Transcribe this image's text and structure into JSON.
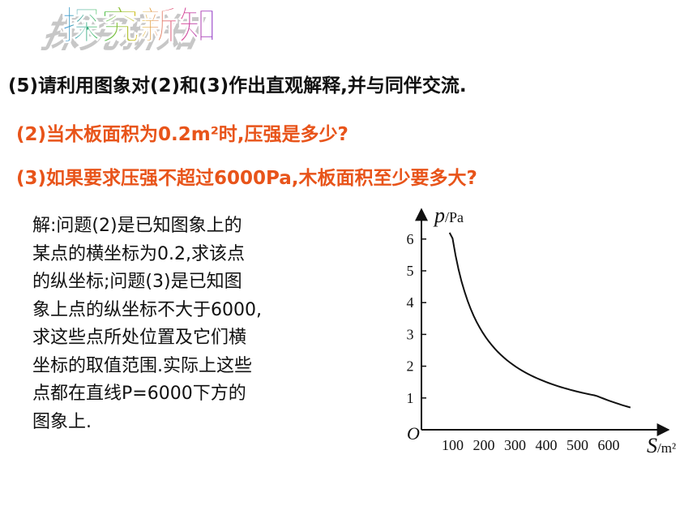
{
  "title": "探究新知",
  "question_main": "(5)请利用图象对(2)和(3)作出直观解释,并与同伴交流.",
  "question_2": "(2)当木板面积为0.2m²时,压强是多少?",
  "question_3": "(3)如果要求压强不超过6000Pa,木板面积至少要多大?",
  "answer_lines": [
    "解:问题(2)是已知图象上的",
    "某点的横坐标为0.2,求该点",
    "的纵坐标;问题(3)是已知图",
    "象上点的纵坐标不大于6000,",
    "求这些点所处位置及它们横",
    "坐标的取值范围.实际上这些",
    "点都在直线P=6000下方的",
    "图象上."
  ],
  "colors": {
    "question_sub": "#e8541a",
    "text": "#111111"
  },
  "chart_data": {
    "type": "line",
    "xlabel_var": "S",
    "xlabel_unit": "/m²",
    "ylabel_var": "p",
    "ylabel_unit": "/Pa",
    "origin_label": "O",
    "x_ticks": [
      "100",
      "200",
      "300",
      "400",
      "500",
      "600"
    ],
    "y_ticks": [
      "1",
      "2",
      "3",
      "4",
      "5",
      "6"
    ],
    "xlim": [
      0,
      700
    ],
    "ylim": [
      0,
      7
    ],
    "series": [
      {
        "x": [
          100,
          120,
          150,
          200,
          250,
          300,
          350,
          400,
          450,
          500,
          550,
          600
        ],
        "y": [
          6.0,
          5.0,
          4.0,
          3.0,
          2.4,
          2.0,
          1.71,
          1.5,
          1.33,
          1.2,
          1.09,
          1.0
        ]
      }
    ],
    "grid": false
  }
}
